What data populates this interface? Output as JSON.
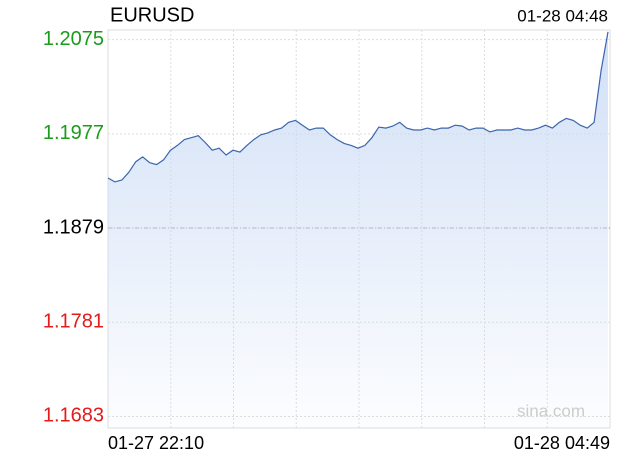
{
  "chart_data": {
    "type": "line",
    "title": "EURUSD",
    "timestamp": "01-28 04:48",
    "watermark": "sina.com",
    "x_axis_labels": [
      "01-27 22:10",
      "01-28 04:49"
    ],
    "ylim": [
      1.1671,
      1.2085
    ],
    "yticks": [
      1.2075,
      1.1977,
      1.1879,
      1.1781,
      1.1683
    ],
    "reference": 1.1879,
    "up_color": "#1a9b1a",
    "down_color": "#e31b1b",
    "flat_color": "#000000",
    "grid": true,
    "series": [
      {
        "color": "#3a66ae",
        "fill": "#c9daf5",
        "values": [
          1.1931,
          1.1927,
          1.1929,
          1.1937,
          1.1948,
          1.1953,
          1.1947,
          1.1945,
          1.195,
          1.196,
          1.1965,
          1.1971,
          1.1973,
          1.1975,
          1.1968,
          1.196,
          1.1962,
          1.1955,
          1.196,
          1.1958,
          1.1965,
          1.1971,
          1.1976,
          1.1978,
          1.1981,
          1.1983,
          1.1989,
          1.1991,
          1.1986,
          1.1981,
          1.1983,
          1.1983,
          1.1976,
          1.1971,
          1.1967,
          1.1965,
          1.1962,
          1.1965,
          1.1973,
          1.1984,
          1.1983,
          1.1985,
          1.1989,
          1.1983,
          1.1981,
          1.1981,
          1.1983,
          1.1981,
          1.1983,
          1.1983,
          1.1986,
          1.1985,
          1.1981,
          1.1983,
          1.1983,
          1.1979,
          1.1981,
          1.1981,
          1.1981,
          1.1983,
          1.1981,
          1.1981,
          1.1983,
          1.1986,
          1.1983,
          1.1989,
          1.1993,
          1.1991,
          1.1986,
          1.1983,
          1.1989,
          1.2043,
          1.2083
        ]
      }
    ]
  }
}
